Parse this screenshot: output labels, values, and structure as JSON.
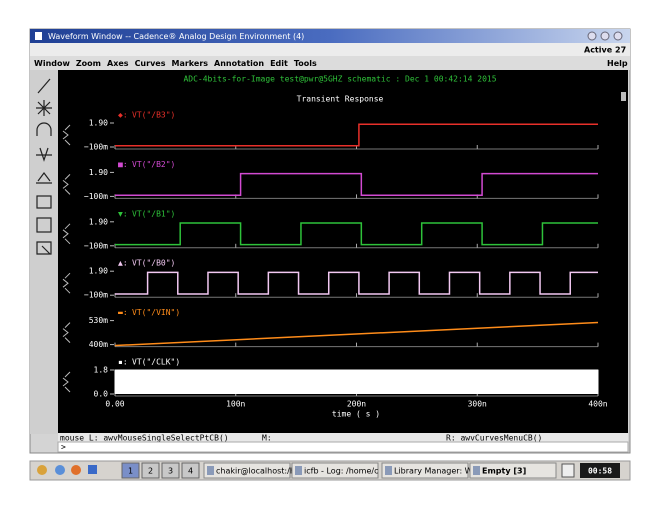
{
  "window": {
    "title": "Waveform Window -- Cadence® Analog Design Environment (4)",
    "active_label": "Active",
    "active_count": "27",
    "menus": [
      "Window",
      "Zoom",
      "Axes",
      "Curves",
      "Markers",
      "Annotation",
      "Edit",
      "Tools"
    ],
    "help_menu": "Help"
  },
  "chart_data": {
    "type": "waveform",
    "header": "ADC-4bits-for-Image test@pwr@5GHZ schematic : Dec  1 00:42:14 2015",
    "title": "Transient Response",
    "xlabel": "time ( s )",
    "xlim": [
      0,
      400
    ],
    "xticks": [
      {
        "value": 0,
        "label": "0.00"
      },
      {
        "value": 100,
        "label": "100n"
      },
      {
        "value": 200,
        "label": "200n"
      },
      {
        "value": 300,
        "label": "300n"
      },
      {
        "value": 400,
        "label": "400n"
      }
    ],
    "series": [
      {
        "name": "VT(\"/B3\")",
        "symbol": "◆:",
        "color": "#e8302a",
        "ylim": [
          -0.1,
          1.9
        ],
        "yticks": [
          {
            "value": 1.9,
            "label": "1.90"
          },
          {
            "value": -0.1,
            "label": "−100m"
          }
        ],
        "x": [
          0,
          202,
          202,
          400
        ],
        "values": [
          0,
          0,
          1.8,
          1.8
        ]
      },
      {
        "name": "VT(\"/B2\")",
        "symbol": "■:",
        "color": "#d24ad2",
        "ylim": [
          -0.1,
          1.9
        ],
        "yticks": [
          {
            "value": 1.9,
            "label": "1.90"
          },
          {
            "value": -0.1,
            "label": "−100m"
          }
        ],
        "x": [
          0,
          104,
          104,
          204,
          204,
          304,
          304,
          400
        ],
        "values": [
          0,
          0,
          1.8,
          1.8,
          0,
          0,
          1.8,
          1.8
        ]
      },
      {
        "name": "VT(\"/B1\")",
        "symbol": "▼:",
        "color": "#2ec23a",
        "ylim": [
          -0.1,
          1.9
        ],
        "yticks": [
          {
            "value": 1.9,
            "label": "1.90"
          },
          {
            "value": -0.1,
            "label": "−100m"
          }
        ],
        "x": [
          0,
          54,
          54,
          104,
          104,
          154,
          154,
          204,
          204,
          254,
          254,
          304,
          304,
          354,
          354,
          400
        ],
        "values": [
          0,
          0,
          1.8,
          1.8,
          0,
          0,
          1.8,
          1.8,
          0,
          0,
          1.8,
          1.8,
          0,
          0,
          1.8,
          1.8
        ]
      },
      {
        "name": "VT(\"/B0\")",
        "symbol": "▲:",
        "color": "#f2c8f2",
        "ylim": [
          -0.1,
          1.9
        ],
        "yticks": [
          {
            "value": 1.9,
            "label": "1.90"
          },
          {
            "value": -0.1,
            "label": "−100m"
          }
        ],
        "x": [
          0,
          27,
          27,
          52,
          52,
          77,
          77,
          102,
          102,
          127,
          127,
          152,
          152,
          177,
          177,
          202,
          202,
          227,
          227,
          252,
          252,
          277,
          277,
          302,
          302,
          327,
          327,
          352,
          352,
          377,
          377,
          400
        ],
        "values": [
          0,
          0,
          1.8,
          1.8,
          0,
          0,
          1.8,
          1.8,
          0,
          0,
          1.8,
          1.8,
          0,
          0,
          1.8,
          1.8,
          0,
          0,
          1.8,
          1.8,
          0,
          0,
          1.8,
          1.8,
          0,
          0,
          1.8,
          1.8,
          0,
          0,
          1.8,
          1.8
        ]
      },
      {
        "name": "VT(\"/VIN\")",
        "symbol": "▬:",
        "color": "#ff8c1a",
        "ylim": [
          0.4,
          0.53
        ],
        "yticks": [
          {
            "value": 0.53,
            "label": "530m"
          },
          {
            "value": 0.4,
            "label": "400m"
          }
        ],
        "x": [
          0,
          400
        ],
        "values": [
          0.395,
          0.52
        ]
      },
      {
        "name": "VT(\"/CLK\")",
        "symbol": "▪:",
        "color": "#ffffff",
        "ylim": [
          0,
          1.8
        ],
        "yticks": [
          {
            "value": 1.8,
            "label": "1.8"
          },
          {
            "value": 0,
            "label": "0.0"
          }
        ],
        "period": 0.2,
        "levels": [
          0,
          1.8
        ]
      }
    ]
  },
  "status": {
    "left": "mouse L: awvMouseSingleSelectPtCB()",
    "middle": "M:",
    "right": "R: awvCurvesMenuCB()",
    "prompt": ">"
  },
  "taskbar": {
    "desktops": [
      "1",
      "2",
      "3",
      "4"
    ],
    "tasks": [
      "chakir@localhost:/h",
      "icfb - Log: /home/c",
      "Library Manager: W",
      "Empty [3]"
    ],
    "clock": "00:58"
  }
}
